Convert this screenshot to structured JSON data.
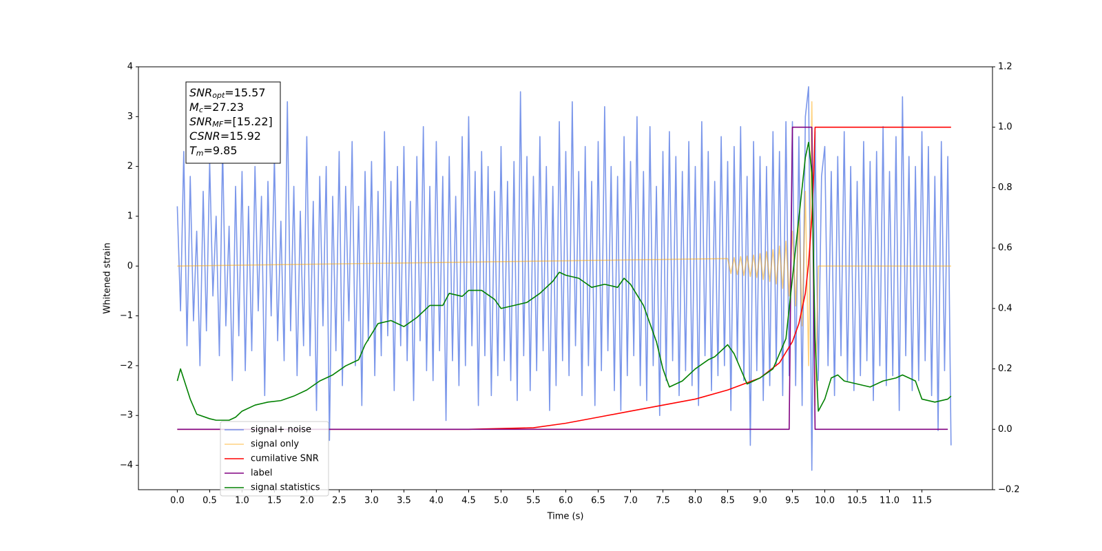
{
  "chart_data": {
    "type": "line",
    "xlabel": "Time (s)",
    "ylabel": "Whitened strain",
    "xlim": [
      -0.6,
      12.59
    ],
    "ylim": [
      -4.49,
      4.0
    ],
    "y2lim": [
      -0.2,
      1.2
    ],
    "xticks": [
      {
        "value": 0,
        "label": "0.0"
      },
      0.5,
      {
        "value": 1,
        "label": "1.0"
      },
      1.5,
      {
        "value": 2,
        "label": "2.0"
      },
      2.5,
      {
        "value": 3,
        "label": "3.0"
      },
      3.5,
      {
        "value": 4,
        "label": "4.0"
      },
      4.5,
      {
        "value": 5,
        "label": "5.0"
      },
      5.5,
      {
        "value": 6,
        "label": "6.0"
      },
      6.5,
      {
        "value": 7,
        "label": "7.0"
      },
      7.5,
      {
        "value": 8,
        "label": "8.0"
      },
      8.5,
      {
        "value": 9,
        "label": "9.0"
      },
      9.5,
      {
        "value": 10,
        "label": "10.0"
      },
      10.5,
      {
        "value": 11,
        "label": "11.0"
      },
      11.5
    ],
    "yticks": [
      {
        "value": -4,
        "label": "−4"
      },
      {
        "value": -3,
        "label": "−3"
      },
      {
        "value": -2,
        "label": "−2"
      },
      {
        "value": -1,
        "label": "−1"
      },
      0,
      1,
      2,
      3,
      4
    ],
    "y2ticks": [
      {
        "value": -0.2,
        "label": "−0.2"
      },
      {
        "value": 0,
        "label": "0.0"
      },
      0.2,
      0.4,
      0.6,
      0.8,
      {
        "value": 1,
        "label": "1.0"
      },
      1.2
    ],
    "annotation": [
      {
        "symbol": "SNR",
        "subscript": "opt",
        "text": "=15.57"
      },
      {
        "symbol": "M",
        "subscript": "c",
        "text": "=27.23"
      },
      {
        "symbol": "SNR",
        "subscript": "MF",
        "text": "=[15.22]"
      },
      {
        "symbol": "CSNR",
        "subscript": null,
        "text": "=15.92"
      },
      {
        "symbol": "T",
        "subscript": "m",
        "text": "=9.85"
      }
    ],
    "x": [
      0,
      0.05,
      0.1,
      0.15,
      0.2,
      0.25,
      0.3,
      0.35,
      0.4,
      0.45,
      0.5,
      0.55,
      0.6,
      0.65,
      0.7,
      0.75,
      0.8,
      0.85,
      0.9,
      0.95,
      1,
      1.05,
      1.1,
      1.15,
      1.2,
      1.25,
      1.3,
      1.35,
      1.4,
      1.45,
      1.5,
      1.55,
      1.6,
      1.65,
      1.7,
      1.75,
      1.8,
      1.85,
      1.9,
      1.95,
      2,
      2.05,
      2.1,
      2.15,
      2.2,
      2.25,
      2.3,
      2.35,
      2.4,
      2.45,
      2.5,
      2.55,
      2.6,
      2.65,
      2.7,
      2.75,
      2.8,
      2.85,
      2.9,
      2.95,
      3,
      3.05,
      3.1,
      3.15,
      3.2,
      3.25,
      3.3,
      3.35,
      3.4,
      3.45,
      3.5,
      3.55,
      3.6,
      3.65,
      3.7,
      3.75,
      3.8,
      3.85,
      3.9,
      3.95,
      4,
      4.05,
      4.1,
      4.15,
      4.2,
      4.25,
      4.3,
      4.35,
      4.4,
      4.45,
      4.5,
      4.55,
      4.6,
      4.65,
      4.7,
      4.75,
      4.8,
      4.85,
      4.9,
      4.95,
      5,
      5.05,
      5.1,
      5.15,
      5.2,
      5.25,
      5.3,
      5.35,
      5.4,
      5.45,
      5.5,
      5.55,
      5.6,
      5.65,
      5.7,
      5.75,
      5.8,
      5.85,
      5.9,
      5.95,
      6,
      6.05,
      6.1,
      6.15,
      6.2,
      6.25,
      6.3,
      6.35,
      6.4,
      6.45,
      6.5,
      6.55,
      6.6,
      6.65,
      6.7,
      6.75,
      6.8,
      6.85,
      6.9,
      6.95,
      7,
      7.05,
      7.1,
      7.15,
      7.2,
      7.25,
      7.3,
      7.35,
      7.4,
      7.45,
      7.5,
      7.55,
      7.6,
      7.65,
      7.7,
      7.75,
      7.8,
      7.85,
      7.9,
      7.95,
      8,
      8.05,
      8.1,
      8.15,
      8.2,
      8.25,
      8.3,
      8.35,
      8.4,
      8.45,
      8.5,
      8.55,
      8.6,
      8.65,
      8.7,
      8.75,
      8.8,
      8.85,
      8.9,
      8.95,
      9,
      9.05,
      9.1,
      9.15,
      9.2,
      9.25,
      9.3,
      9.35,
      9.4,
      9.45,
      9.5,
      9.55,
      9.6,
      9.65,
      9.7,
      9.75,
      9.8,
      9.85,
      9.9,
      9.95,
      10,
      10.05,
      10.1,
      10.15,
      10.2,
      10.25,
      10.3,
      10.35,
      10.4,
      10.45,
      10.5,
      10.55,
      10.6,
      10.65,
      10.7,
      10.75,
      10.8,
      10.85,
      10.9,
      10.95,
      11,
      11.05,
      11.1,
      11.15,
      11.2,
      11.25,
      11.3,
      11.35,
      11.4,
      11.45,
      11.5,
      11.55,
      11.6,
      11.65,
      11.7,
      11.75,
      11.8,
      11.85,
      11.9,
      11.95
    ],
    "series": [
      {
        "name": "signal+ noise",
        "color": "#4169e1",
        "alpha": 0.7,
        "values": [
          1.2,
          -0.9,
          2.3,
          -1.6,
          1.8,
          -1.1,
          0.7,
          -2.0,
          1.5,
          -1.3,
          2.1,
          -0.6,
          1.0,
          -1.8,
          2.4,
          -1.2,
          0.8,
          -2.3,
          1.6,
          -1.4,
          1.9,
          -2.1,
          1.2,
          -1.7,
          2.0,
          -0.9,
          1.4,
          -2.6,
          1.7,
          -1.0,
          2.2,
          -1.5,
          0.9,
          -1.9,
          3.3,
          -1.3,
          1.6,
          -2.2,
          1.1,
          -1.6,
          2.6,
          -1.8,
          1.3,
          -2.9,
          1.8,
          -1.2,
          2.0,
          -3.5,
          1.4,
          -1.7,
          2.3,
          -2.4,
          1.6,
          -1.1,
          2.5,
          -2.0,
          1.2,
          -2.8,
          1.9,
          -1.5,
          2.1,
          -2.2,
          1.5,
          -1.8,
          2.7,
          -1.4,
          1.7,
          -2.5,
          2.0,
          -1.6,
          2.4,
          -1.9,
          1.3,
          -2.7,
          2.2,
          -1.5,
          2.8,
          -2.1,
          1.6,
          -2.3,
          2.5,
          -1.7,
          1.8,
          -3.1,
          2.2,
          -1.9,
          1.4,
          -2.4,
          2.6,
          -2.0,
          3.0,
          -1.6,
          1.9,
          -2.8,
          2.3,
          -1.8,
          2.0,
          -2.6,
          1.5,
          -2.2,
          2.4,
          -1.9,
          1.7,
          -2.3,
          2.1,
          -2.7,
          3.5,
          -1.8,
          2.2,
          -2.5,
          1.8,
          -2.1,
          2.6,
          -1.7,
          2.0,
          -2.9,
          1.6,
          -2.4,
          2.9,
          -1.9,
          2.3,
          -2.2,
          3.3,
          -1.6,
          1.9,
          -2.6,
          2.4,
          -2.0,
          1.7,
          -2.8,
          2.5,
          -2.1,
          3.2,
          -1.7,
          2.0,
          -2.5,
          1.8,
          -2.9,
          2.6,
          -2.2,
          2.1,
          -1.8,
          3.0,
          -2.4,
          1.9,
          -2.7,
          2.8,
          -2.0,
          1.6,
          -3.0,
          2.3,
          -2.3,
          2.7,
          -1.9,
          2.2,
          -2.6,
          1.9,
          -2.1,
          2.5,
          -2.4,
          2.0,
          -2.8,
          2.9,
          -1.8,
          2.3,
          -2.5,
          1.7,
          -2.2,
          2.6,
          -2.0,
          2.1,
          -2.9,
          2.4,
          -1.9,
          2.8,
          -2.3,
          1.8,
          -3.6,
          2.5,
          -2.1,
          2.2,
          -2.7,
          2.0,
          -2.4,
          2.7,
          -2.0,
          2.3,
          -2.6,
          2.9,
          -2.2,
          2.9,
          -2.4,
          2.6,
          -2.8,
          3.0,
          3.6,
          -4.1,
          2.7,
          -2.3,
          1.8,
          2.4,
          -2.0,
          1.9,
          -2.6,
          2.2,
          -1.8,
          2.7,
          -2.3,
          2.0,
          -2.5,
          1.7,
          -2.2,
          2.5,
          -1.9,
          2.1,
          -2.7,
          2.3,
          -2.0,
          2.8,
          -2.4,
          1.9,
          -2.2,
          2.6,
          -2.9,
          3.4,
          -1.8,
          2.2,
          -2.5,
          2.0,
          -2.3,
          2.7,
          -1.9,
          2.4,
          -2.6,
          1.8,
          -3.3,
          2.5,
          -2.1,
          2.2,
          -3.6
        ]
      },
      {
        "name": "signal only",
        "color": "#ffa500",
        "alpha": 0.5,
        "x": [
          0,
          8.5,
          8.55,
          8.6,
          8.65,
          8.7,
          8.75,
          8.8,
          8.85,
          8.9,
          8.95,
          9,
          9.05,
          9.1,
          9.15,
          9.2,
          9.25,
          9.3,
          9.35,
          9.4,
          9.45,
          9.5,
          9.55,
          9.6,
          9.65,
          9.7,
          9.75,
          9.8,
          9.85,
          9.9,
          11.95
        ],
        "values": [
          0,
          0.15,
          -0.15,
          0.17,
          -0.17,
          0.19,
          -0.19,
          0.2,
          -0.21,
          0.22,
          -0.23,
          0.25,
          -0.27,
          0.29,
          -0.31,
          0.33,
          -0.36,
          0.4,
          -0.45,
          0.5,
          -0.6,
          0.7,
          -0.8,
          1.0,
          -1.2,
          1.5,
          -2.0,
          3.3,
          -2.8,
          0,
          0
        ]
      },
      {
        "name": "cumilative SNR",
        "color": "#ff0000",
        "axis": "y2",
        "x": [
          0,
          4.5,
          5.5,
          6.0,
          6.5,
          7.0,
          7.5,
          8.0,
          8.5,
          9.0,
          9.3,
          9.5,
          9.6,
          9.7,
          9.75,
          9.8,
          9.83,
          9.85,
          11.95
        ],
        "values": [
          0,
          0,
          0.005,
          0.02,
          0.04,
          0.06,
          0.08,
          0.1,
          0.13,
          0.17,
          0.22,
          0.29,
          0.35,
          0.45,
          0.55,
          0.7,
          0.85,
          1.0,
          1.0
        ]
      },
      {
        "name": "label",
        "color": "#800080",
        "axis": "y2",
        "x": [
          0,
          9.45,
          9.5,
          9.8,
          9.85,
          11.9
        ],
        "values": [
          0,
          0,
          1,
          1,
          0,
          0
        ]
      },
      {
        "name": "signal statistics",
        "color": "#008000",
        "axis": "y2",
        "x": [
          0,
          0.05,
          0.2,
          0.3,
          0.5,
          0.6,
          0.7,
          0.8,
          0.9,
          1.0,
          1.2,
          1.4,
          1.6,
          1.8,
          2.0,
          2.2,
          2.4,
          2.6,
          2.8,
          2.9,
          3.1,
          3.3,
          3.5,
          3.7,
          3.9,
          4.1,
          4.2,
          4.4,
          4.5,
          4.7,
          4.9,
          5.0,
          5.2,
          5.4,
          5.6,
          5.8,
          5.9,
          6.0,
          6.2,
          6.4,
          6.6,
          6.8,
          6.9,
          7.0,
          7.2,
          7.4,
          7.5,
          7.6,
          7.8,
          8.0,
          8.2,
          8.3,
          8.5,
          8.6,
          8.8,
          9.0,
          9.2,
          9.4,
          9.5,
          9.6,
          9.7,
          9.75,
          9.8,
          9.85,
          9.9,
          10.0,
          10.1,
          10.2,
          10.3,
          10.5,
          10.7,
          10.9,
          11.1,
          11.2,
          11.4,
          11.5,
          11.7,
          11.9,
          11.95
        ],
        "values": [
          0.16,
          0.2,
          0.1,
          0.05,
          0.035,
          0.03,
          0.03,
          0.03,
          0.04,
          0.06,
          0.08,
          0.09,
          0.095,
          0.11,
          0.13,
          0.16,
          0.18,
          0.21,
          0.23,
          0.28,
          0.35,
          0.36,
          0.34,
          0.37,
          0.41,
          0.41,
          0.45,
          0.44,
          0.46,
          0.46,
          0.43,
          0.4,
          0.41,
          0.42,
          0.45,
          0.49,
          0.52,
          0.51,
          0.5,
          0.47,
          0.48,
          0.47,
          0.5,
          0.48,
          0.41,
          0.29,
          0.2,
          0.14,
          0.16,
          0.2,
          0.23,
          0.24,
          0.28,
          0.25,
          0.15,
          0.17,
          0.2,
          0.3,
          0.5,
          0.7,
          0.9,
          0.95,
          0.85,
          0.3,
          0.06,
          0.1,
          0.17,
          0.18,
          0.16,
          0.15,
          0.14,
          0.16,
          0.17,
          0.18,
          0.16,
          0.1,
          0.09,
          0.1,
          0.11
        ]
      }
    ]
  }
}
